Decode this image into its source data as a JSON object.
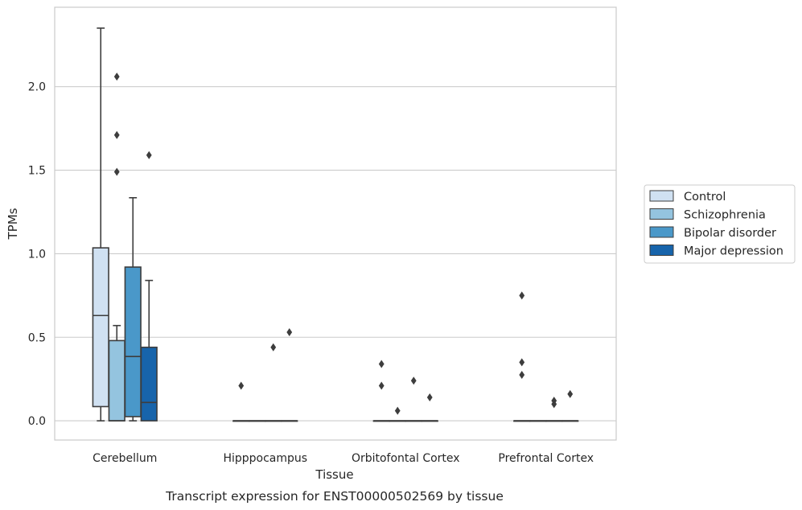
{
  "caption": "Transcript expression for ENST00000502569 by tissue",
  "chart_data": {
    "type": "box",
    "xlabel": "Tissue",
    "ylabel": "TPMs",
    "ylim": [
      -0.115,
      2.475
    ],
    "yticks": [
      "0.0",
      "0.5",
      "1.0",
      "1.5",
      "2.0"
    ],
    "ytick_values": [
      0,
      0.5,
      1.0,
      1.5,
      2.0
    ],
    "grid": "horizontal",
    "legend_placement": "right, outside plot",
    "categories": [
      "Cerebellum",
      "Hipppocampus",
      "Orbitofontal Cortex",
      "Prefrontal Cortex"
    ],
    "series": [
      {
        "name": "Control",
        "color": "#d0e1f2",
        "boxes": [
          {
            "min": 0.0,
            "q1": 0.085,
            "median": 0.63,
            "q3": 1.035,
            "max": 2.35,
            "outliers": []
          },
          {
            "min": 0.0,
            "q1": 0.0,
            "median": 0.0,
            "q3": 0.0,
            "max": 0.0,
            "outliers": [
              0.21
            ]
          },
          {
            "min": 0.0,
            "q1": 0.0,
            "median": 0.0,
            "q3": 0.0,
            "max": 0.0,
            "outliers": [
              0.21,
              0.34
            ]
          },
          {
            "min": 0.0,
            "q1": 0.0,
            "median": 0.0,
            "q3": 0.0,
            "max": 0.0,
            "outliers": [
              0.275,
              0.35,
              0.75
            ]
          }
        ]
      },
      {
        "name": "Schizophrenia",
        "color": "#94c4df",
        "boxes": [
          {
            "min": 0.0,
            "q1": 0.0,
            "median": 0.0,
            "q3": 0.48,
            "max": 0.57,
            "outliers": [
              1.49,
              1.71,
              2.06
            ]
          },
          {
            "min": 0.0,
            "q1": 0.0,
            "median": 0.0,
            "q3": 0.0,
            "max": 0.0,
            "outliers": []
          },
          {
            "min": 0.0,
            "q1": 0.0,
            "median": 0.0,
            "q3": 0.0,
            "max": 0.0,
            "outliers": [
              0.06
            ]
          },
          {
            "min": 0.0,
            "q1": 0.0,
            "median": 0.0,
            "q3": 0.0,
            "max": 0.0,
            "outliers": []
          }
        ]
      },
      {
        "name": "Bipolar disorder",
        "color": "#4a98c9",
        "boxes": [
          {
            "min": 0.0,
            "q1": 0.025,
            "median": 0.385,
            "q3": 0.92,
            "max": 1.335,
            "outliers": []
          },
          {
            "min": 0.0,
            "q1": 0.0,
            "median": 0.0,
            "q3": 0.0,
            "max": 0.0,
            "outliers": [
              0.44
            ]
          },
          {
            "min": 0.0,
            "q1": 0.0,
            "median": 0.0,
            "q3": 0.0,
            "max": 0.0,
            "outliers": [
              0.24
            ]
          },
          {
            "min": 0.0,
            "q1": 0.0,
            "median": 0.0,
            "q3": 0.0,
            "max": 0.0,
            "outliers": [
              0.1,
              0.12
            ]
          }
        ]
      },
      {
        "name": "Major depression",
        "color": "#1764ab",
        "boxes": [
          {
            "min": 0.0,
            "q1": 0.0,
            "median": 0.11,
            "q3": 0.44,
            "max": 0.84,
            "outliers": [
              1.59
            ]
          },
          {
            "min": 0.0,
            "q1": 0.0,
            "median": 0.0,
            "q3": 0.0,
            "max": 0.0,
            "outliers": [
              0.53
            ]
          },
          {
            "min": 0.0,
            "q1": 0.0,
            "median": 0.0,
            "q3": 0.0,
            "max": 0.0,
            "outliers": [
              0.14
            ]
          },
          {
            "min": 0.0,
            "q1": 0.0,
            "median": 0.0,
            "q3": 0.0,
            "max": 0.0,
            "outliers": [
              0.16
            ]
          }
        ]
      }
    ]
  }
}
